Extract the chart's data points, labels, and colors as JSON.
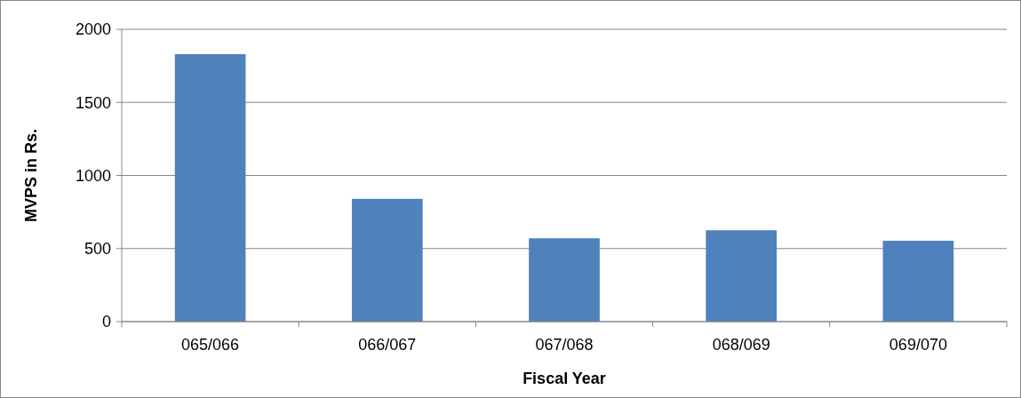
{
  "chart_data": {
    "type": "bar",
    "xlabel": "Fiscal Year",
    "ylabel": "MVPS in Rs.",
    "categories": [
      "065/066",
      "066/067",
      "067/068",
      "068/069",
      "069/070"
    ],
    "values": [
      1830,
      840,
      570,
      625,
      553
    ],
    "color": "#4f81bd",
    "ylim": [
      0,
      2000
    ],
    "yticks": [
      0,
      500,
      1000,
      1500,
      2000
    ],
    "grid": "y"
  }
}
